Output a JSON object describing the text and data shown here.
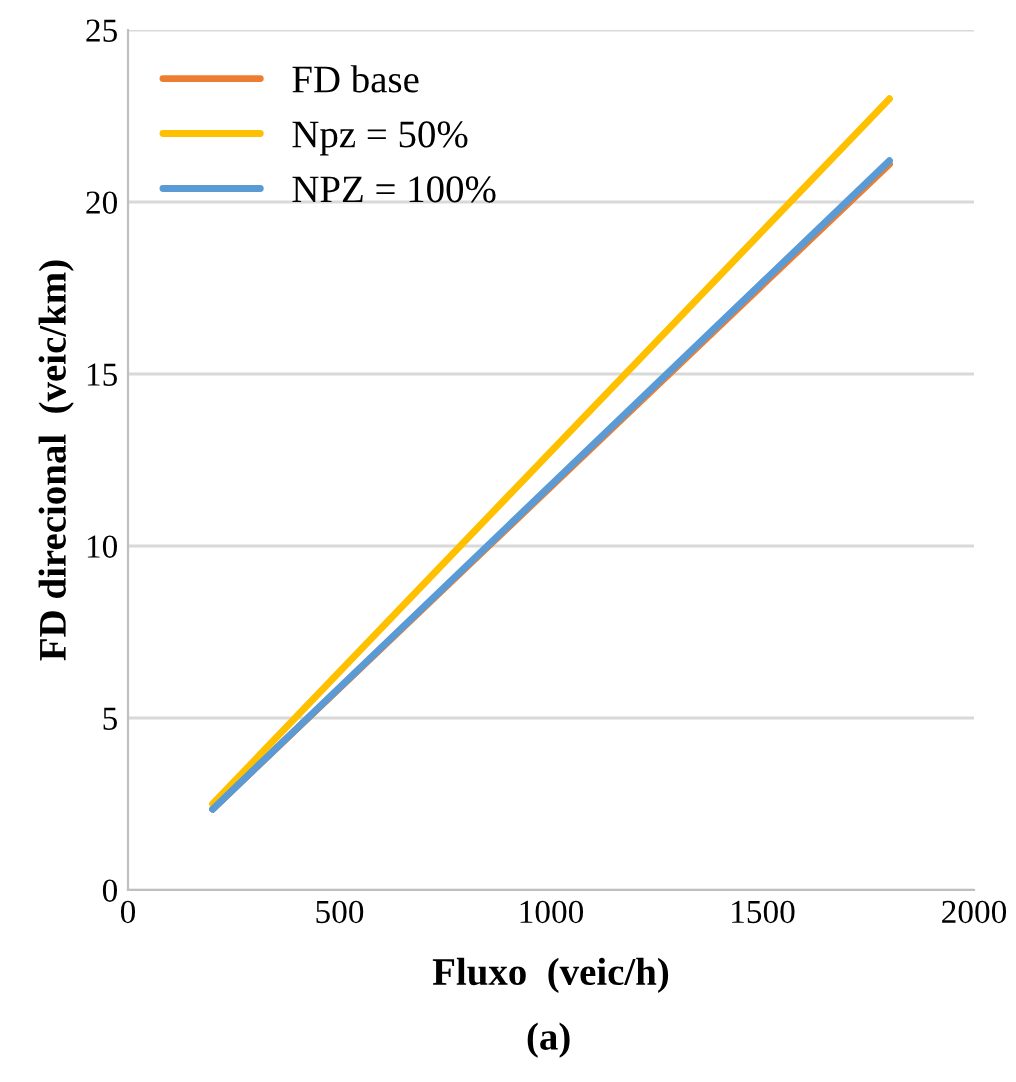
{
  "chart_data": {
    "type": "line",
    "xlabel": "Fluxo  (veic/h)",
    "ylabel": "FD direcional  (veic/km)",
    "annotations": [
      "(a)"
    ],
    "xlim": [
      0,
      2000
    ],
    "xticks": [
      0,
      500,
      1000,
      1500,
      2000
    ],
    "ylim": [
      0,
      25
    ],
    "yticks": [
      0,
      5,
      10,
      15,
      20,
      25
    ],
    "grid": "y",
    "legend": "top left",
    "x": [
      200,
      1800
    ],
    "series": [
      {
        "name": "FD base",
        "color": "#ed7d31",
        "values": [
          2.35,
          21.1
        ]
      },
      {
        "name": "Npz = 50%",
        "color": "#ffc000",
        "values": [
          2.5,
          23.0
        ]
      },
      {
        "name": "NPZ = 100%",
        "color": "#5b9bd5",
        "values": [
          2.35,
          21.2
        ]
      }
    ]
  }
}
